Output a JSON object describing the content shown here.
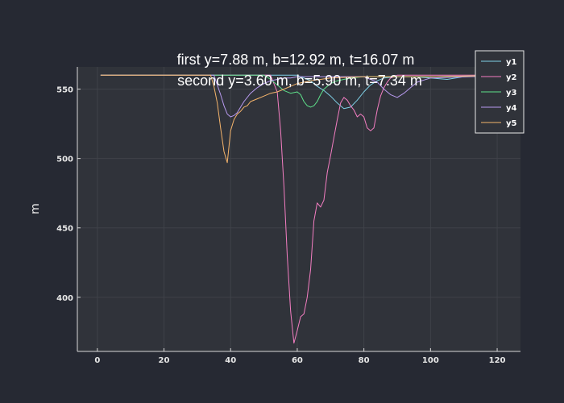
{
  "chart_data": {
    "type": "line",
    "title_lines": [
      "first y=7.88 m, b=12.92 m, t=16.07 m",
      "second y=3.60 m, b=5.90 m, t=7.34 m"
    ],
    "xlabel": "",
    "ylabel": "m",
    "xlim": [
      -6,
      127
    ],
    "ylim": [
      361,
      566
    ],
    "xticks": [
      0,
      20,
      40,
      60,
      80,
      100,
      120
    ],
    "yticks": [
      400,
      450,
      500,
      550
    ],
    "grid": true,
    "legend_position": "top-right",
    "series": [
      {
        "name": "y1",
        "color": "#7fd0e6",
        "x": [
          1,
          60,
          64,
          66,
          68,
          70,
          72,
          74,
          76,
          78,
          80,
          82,
          84,
          86,
          90,
          95,
          100,
          105,
          110,
          126
        ],
        "y": [
          560,
          560,
          556,
          552,
          549,
          545,
          540,
          536,
          537,
          542,
          548,
          553,
          556,
          558,
          559,
          559,
          558,
          557,
          559,
          560
        ]
      },
      {
        "name": "y2",
        "color": "#f47ec2",
        "x": [
          1,
          52,
          54,
          55,
          56,
          57,
          58,
          59,
          60,
          61,
          62,
          63,
          64,
          65,
          66,
          67,
          68,
          69,
          70,
          71,
          72,
          73,
          74,
          75,
          76,
          77,
          78,
          79,
          80,
          81,
          82,
          83,
          84,
          85,
          86,
          87,
          88,
          89,
          90,
          95,
          100,
          126
        ],
        "y": [
          560,
          560,
          548,
          520,
          480,
          430,
          390,
          367,
          376,
          386,
          388,
          400,
          420,
          455,
          468,
          465,
          470,
          490,
          502,
          515,
          528,
          540,
          544,
          542,
          538,
          535,
          530,
          532,
          530,
          522,
          520,
          522,
          535,
          545,
          551,
          555,
          558,
          559,
          560,
          560,
          560,
          560
        ]
      },
      {
        "name": "y3",
        "color": "#5ee08a",
        "x": [
          1,
          50,
          52,
          54,
          56,
          58,
          60,
          61,
          62,
          63,
          64,
          65,
          66,
          67,
          68,
          70,
          72,
          74,
          76,
          80,
          90,
          100,
          126
        ],
        "y": [
          560,
          560,
          557,
          553,
          549,
          547,
          548,
          546,
          541,
          538,
          537,
          538,
          541,
          546,
          550,
          554,
          556,
          557,
          558,
          559,
          559,
          559,
          560
        ]
      },
      {
        "name": "y4",
        "color": "#b89af0",
        "x": [
          1,
          35,
          36,
          37,
          38,
          39,
          40,
          41,
          42,
          43,
          44,
          46,
          48,
          50,
          52,
          54,
          56,
          58,
          60,
          64,
          70,
          76,
          80,
          84,
          86,
          88,
          90,
          92,
          94,
          96,
          100,
          126
        ],
        "y": [
          560,
          560,
          553,
          546,
          538,
          532,
          530,
          531,
          533,
          537,
          541,
          547,
          551,
          554,
          556,
          557,
          558,
          558,
          559,
          559,
          559,
          559,
          559,
          555,
          550,
          546,
          544,
          547,
          551,
          555,
          558,
          560
        ]
      },
      {
        "name": "y5",
        "color": "#f5b46b",
        "x": [
          1,
          34,
          35,
          36,
          37,
          38,
          39,
          40,
          41,
          42,
          43,
          44,
          45,
          46,
          48,
          50,
          52,
          54,
          56,
          58,
          60,
          64,
          70,
          80,
          100,
          126
        ],
        "y": [
          560,
          560,
          552,
          540,
          522,
          505,
          497,
          520,
          528,
          532,
          534,
          537,
          538,
          541,
          543,
          545,
          547,
          548,
          550,
          552,
          554,
          556,
          558,
          559,
          559,
          560
        ]
      }
    ]
  }
}
